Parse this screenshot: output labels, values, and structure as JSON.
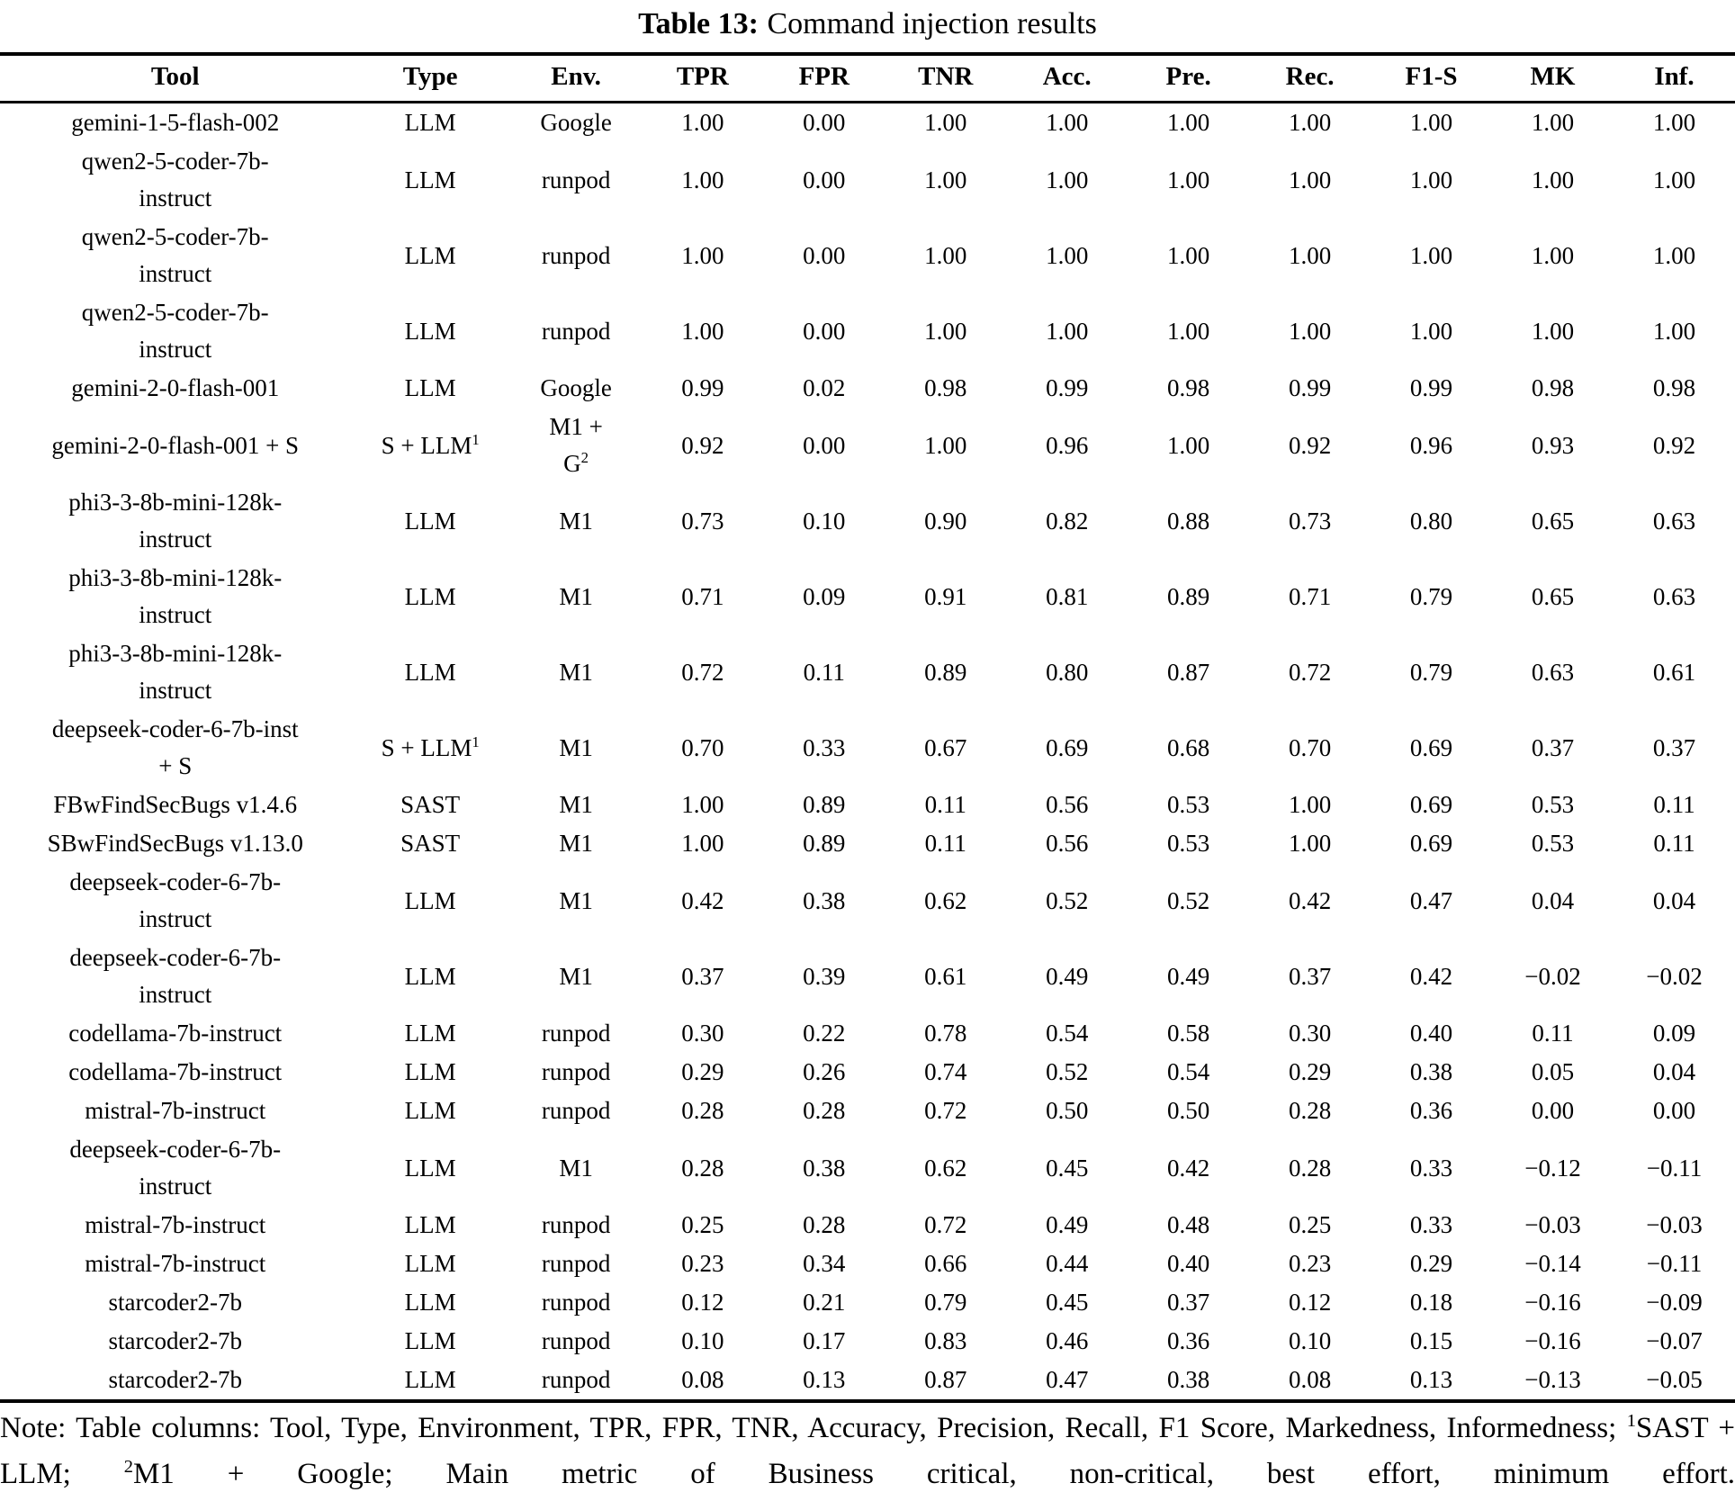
{
  "caption": {
    "label": "Table 13:",
    "title": "Command injection results"
  },
  "table": {
    "columns": [
      "Tool",
      "Type",
      "Env.",
      "TPR",
      "FPR",
      "TNR",
      "Acc.",
      "Pre.",
      "Rec.",
      "F1-S",
      "MK",
      "Inf."
    ],
    "rows": [
      {
        "tool": "gemini-1-5-flash-002",
        "type": "LLM",
        "env": "Google",
        "values": [
          "1.00",
          "0.00",
          "1.00",
          "1.00",
          "1.00",
          "1.00",
          "1.00",
          "1.00",
          "1.00"
        ]
      },
      {
        "tool": "qwen2-5-coder-7b-\ninstruct",
        "type": "LLM",
        "env": "runpod",
        "values": [
          "1.00",
          "0.00",
          "1.00",
          "1.00",
          "1.00",
          "1.00",
          "1.00",
          "1.00",
          "1.00"
        ]
      },
      {
        "tool": "qwen2-5-coder-7b-\ninstruct",
        "type": "LLM",
        "env": "runpod",
        "values": [
          "1.00",
          "0.00",
          "1.00",
          "1.00",
          "1.00",
          "1.00",
          "1.00",
          "1.00",
          "1.00"
        ]
      },
      {
        "tool": "qwen2-5-coder-7b-\ninstruct",
        "type": "LLM",
        "env": "runpod",
        "values": [
          "1.00",
          "0.00",
          "1.00",
          "1.00",
          "1.00",
          "1.00",
          "1.00",
          "1.00",
          "1.00"
        ]
      },
      {
        "tool": "gemini-2-0-flash-001",
        "type": "LLM",
        "env": "Google",
        "values": [
          "0.99",
          "0.02",
          "0.98",
          "0.99",
          "0.98",
          "0.99",
          "0.99",
          "0.98",
          "0.98"
        ]
      },
      {
        "tool": "gemini-2-0-flash-001 + S",
        "type": "S + LLM",
        "type_sup": "1",
        "env": "M1 +\nG",
        "env_sup": "2",
        "values": [
          "0.92",
          "0.00",
          "1.00",
          "0.96",
          "1.00",
          "0.92",
          "0.96",
          "0.93",
          "0.92"
        ]
      },
      {
        "tool": "phi3-3-8b-mini-128k-\ninstruct",
        "type": "LLM",
        "env": "M1",
        "values": [
          "0.73",
          "0.10",
          "0.90",
          "0.82",
          "0.88",
          "0.73",
          "0.80",
          "0.65",
          "0.63"
        ]
      },
      {
        "tool": "phi3-3-8b-mini-128k-\ninstruct",
        "type": "LLM",
        "env": "M1",
        "values": [
          "0.71",
          "0.09",
          "0.91",
          "0.81",
          "0.89",
          "0.71",
          "0.79",
          "0.65",
          "0.63"
        ]
      },
      {
        "tool": "phi3-3-8b-mini-128k-\ninstruct",
        "type": "LLM",
        "env": "M1",
        "values": [
          "0.72",
          "0.11",
          "0.89",
          "0.80",
          "0.87",
          "0.72",
          "0.79",
          "0.63",
          "0.61"
        ]
      },
      {
        "tool": "deepseek-coder-6-7b-inst\n+ S",
        "type": "S + LLM",
        "type_sup": "1",
        "env": "M1",
        "values": [
          "0.70",
          "0.33",
          "0.67",
          "0.69",
          "0.68",
          "0.70",
          "0.69",
          "0.37",
          "0.37"
        ]
      },
      {
        "tool": "FBwFindSecBugs v1.4.6",
        "type": "SAST",
        "env": "M1",
        "values": [
          "1.00",
          "0.89",
          "0.11",
          "0.56",
          "0.53",
          "1.00",
          "0.69",
          "0.53",
          "0.11"
        ]
      },
      {
        "tool": "SBwFindSecBugs v1.13.0",
        "type": "SAST",
        "env": "M1",
        "values": [
          "1.00",
          "0.89",
          "0.11",
          "0.56",
          "0.53",
          "1.00",
          "0.69",
          "0.53",
          "0.11"
        ]
      },
      {
        "tool": "deepseek-coder-6-7b-\ninstruct",
        "type": "LLM",
        "env": "M1",
        "values": [
          "0.42",
          "0.38",
          "0.62",
          "0.52",
          "0.52",
          "0.42",
          "0.47",
          "0.04",
          "0.04"
        ]
      },
      {
        "tool": "deepseek-coder-6-7b-\ninstruct",
        "type": "LLM",
        "env": "M1",
        "values": [
          "0.37",
          "0.39",
          "0.61",
          "0.49",
          "0.49",
          "0.37",
          "0.42",
          "−0.02",
          "−0.02"
        ]
      },
      {
        "tool": "codellama-7b-instruct",
        "type": "LLM",
        "env": "runpod",
        "values": [
          "0.30",
          "0.22",
          "0.78",
          "0.54",
          "0.58",
          "0.30",
          "0.40",
          "0.11",
          "0.09"
        ]
      },
      {
        "tool": "codellama-7b-instruct",
        "type": "LLM",
        "env": "runpod",
        "values": [
          "0.29",
          "0.26",
          "0.74",
          "0.52",
          "0.54",
          "0.29",
          "0.38",
          "0.05",
          "0.04"
        ]
      },
      {
        "tool": "mistral-7b-instruct",
        "type": "LLM",
        "env": "runpod",
        "values": [
          "0.28",
          "0.28",
          "0.72",
          "0.50",
          "0.50",
          "0.28",
          "0.36",
          "0.00",
          "0.00"
        ]
      },
      {
        "tool": "deepseek-coder-6-7b-\ninstruct",
        "type": "LLM",
        "env": "M1",
        "values": [
          "0.28",
          "0.38",
          "0.62",
          "0.45",
          "0.42",
          "0.28",
          "0.33",
          "−0.12",
          "−0.11"
        ]
      },
      {
        "tool": "mistral-7b-instruct",
        "type": "LLM",
        "env": "runpod",
        "values": [
          "0.25",
          "0.28",
          "0.72",
          "0.49",
          "0.48",
          "0.25",
          "0.33",
          "−0.03",
          "−0.03"
        ]
      },
      {
        "tool": "mistral-7b-instruct",
        "type": "LLM",
        "env": "runpod",
        "values": [
          "0.23",
          "0.34",
          "0.66",
          "0.44",
          "0.40",
          "0.23",
          "0.29",
          "−0.14",
          "−0.11"
        ]
      },
      {
        "tool": "starcoder2-7b",
        "type": "LLM",
        "env": "runpod",
        "values": [
          "0.12",
          "0.21",
          "0.79",
          "0.45",
          "0.37",
          "0.12",
          "0.18",
          "−0.16",
          "−0.09"
        ]
      },
      {
        "tool": "starcoder2-7b",
        "type": "LLM",
        "env": "runpod",
        "values": [
          "0.10",
          "0.17",
          "0.83",
          "0.46",
          "0.36",
          "0.10",
          "0.15",
          "−0.16",
          "−0.07"
        ]
      },
      {
        "tool": "starcoder2-7b",
        "type": "LLM",
        "env": "runpod",
        "values": [
          "0.08",
          "0.13",
          "0.87",
          "0.47",
          "0.38",
          "0.08",
          "0.13",
          "−0.13",
          "−0.05"
        ]
      }
    ]
  },
  "note": {
    "parts": [
      {
        "text": "Note: Table columns: Tool, Type, Environment, TPR, FPR, TNR, Accuracy, Precision, Recall, F1 Score, Markedness, Informedness; "
      },
      {
        "sup": "1"
      },
      {
        "text": "SAST + LLM; "
      },
      {
        "sup": "2"
      },
      {
        "text": "M1 + Google; Main metric of Business critical, non-critical, best effort, minimum effort."
      }
    ]
  }
}
